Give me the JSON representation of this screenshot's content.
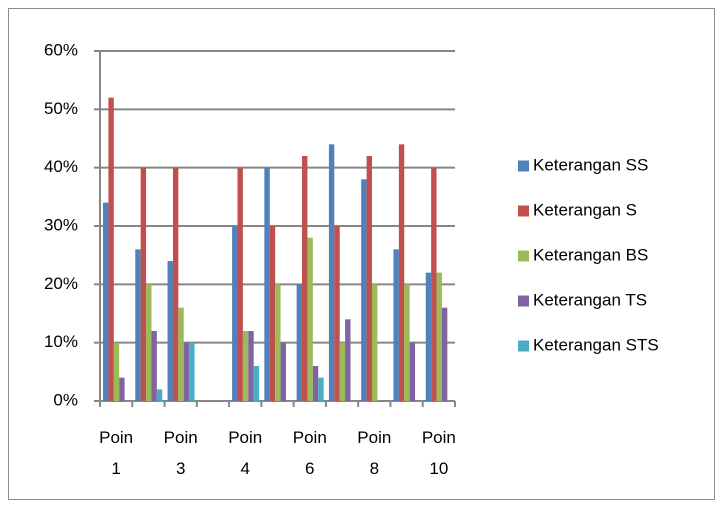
{
  "chart_data": {
    "type": "bar",
    "categories": [
      "Poin 1",
      null,
      "Poin 3",
      null,
      "Poin 4",
      null,
      "Poin 6",
      null,
      "Poin 8",
      null,
      "Poin 10"
    ],
    "series": [
      {
        "name": "Keterangan SS",
        "color": "#4f81bd",
        "values": [
          34,
          26,
          24,
          0,
          30,
          40,
          20,
          44,
          38,
          26,
          22
        ]
      },
      {
        "name": "Keterangan S",
        "color": "#c0504d",
        "values": [
          52,
          40,
          40,
          0,
          40,
          30,
          42,
          30,
          42,
          44,
          40
        ]
      },
      {
        "name": "Keterangan BS",
        "color": "#9bbb59",
        "values": [
          10,
          20,
          16,
          0,
          12,
          20,
          28,
          10,
          20,
          20,
          22
        ]
      },
      {
        "name": "Keterangan TS",
        "color": "#8064a2",
        "values": [
          4,
          12,
          10,
          0,
          12,
          10,
          6,
          14,
          0,
          10,
          16
        ]
      },
      {
        "name": "Keterangan STS",
        "color": "#4bacc6",
        "values": [
          0,
          2,
          10,
          0,
          6,
          0,
          4,
          0,
          0,
          0,
          0
        ]
      }
    ],
    "ylim": [
      0,
      60
    ],
    "yticks": [
      {
        "value": 0,
        "label": "0%"
      },
      {
        "value": 10,
        "label": "10%"
      },
      {
        "value": 20,
        "label": "20%"
      },
      {
        "value": 30,
        "label": "30%"
      },
      {
        "value": 40,
        "label": "40%"
      },
      {
        "value": 50,
        "label": "50%"
      },
      {
        "value": 60,
        "label": "60%"
      }
    ],
    "grid": true,
    "legend": "right"
  }
}
